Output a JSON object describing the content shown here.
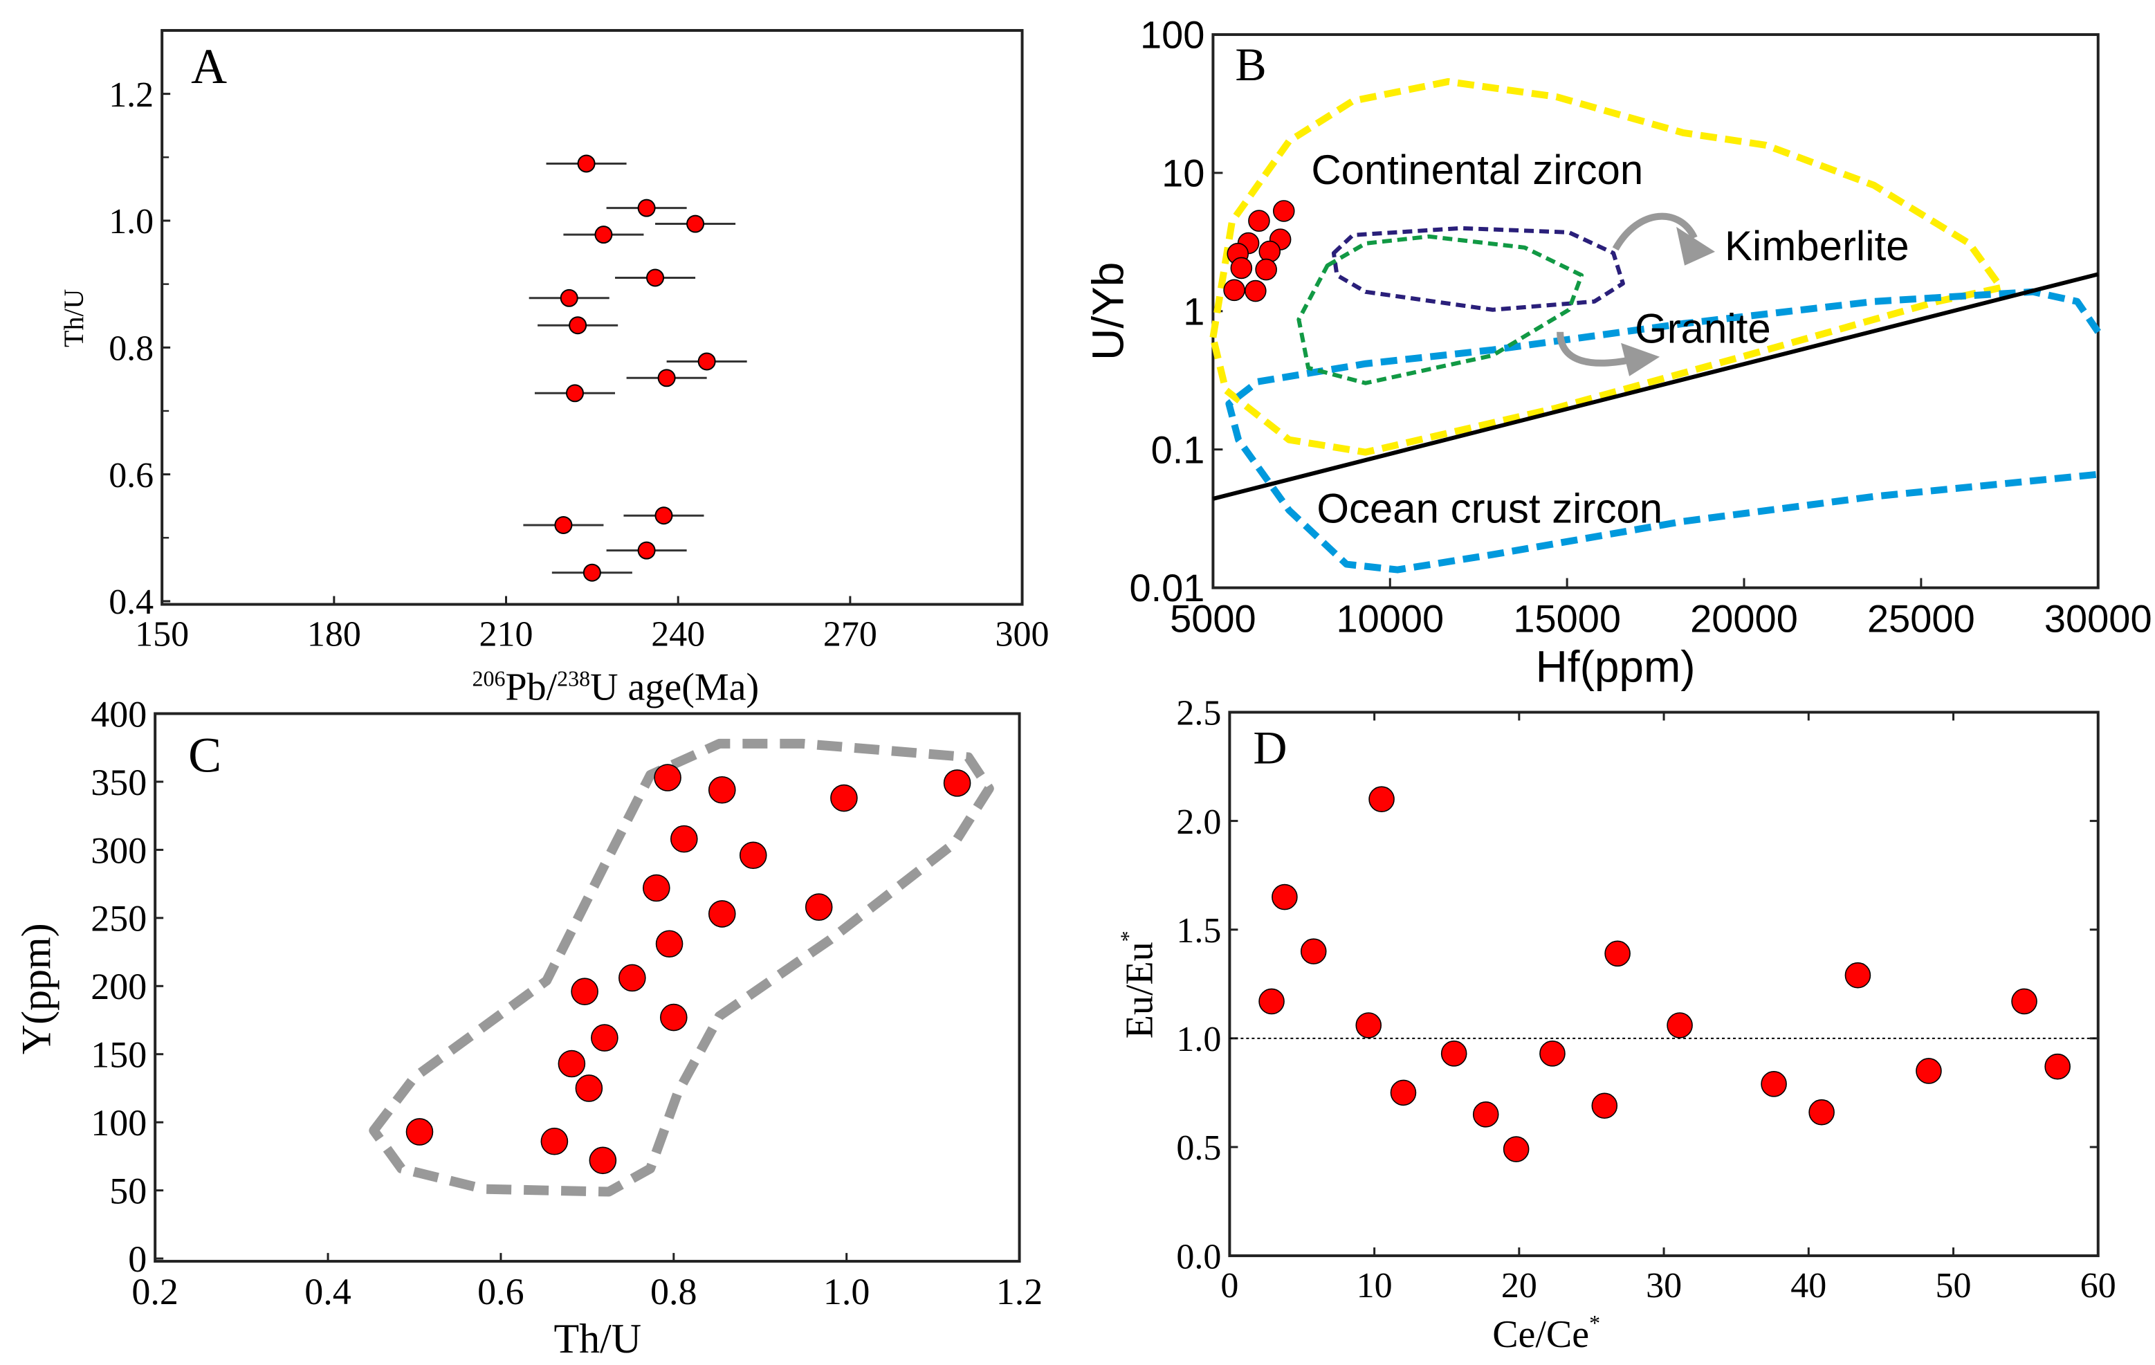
{
  "chart_data": [
    {
      "panel": "A",
      "type": "scatter",
      "xlabel": {
        "sup1": "206",
        "t1": "Pb/",
        "sup2": "238",
        "t2": "U age(Ma)"
      },
      "ylabel": "Th/U",
      "xlim": [
        150,
        300
      ],
      "ylim": [
        0.395,
        1.3
      ],
      "xticks": [
        "150",
        "180",
        "210",
        "240",
        "270",
        "300"
      ],
      "yticks": [
        "0.4",
        "0.6",
        "0.8",
        "1.0",
        "1.2"
      ],
      "error_bar_ma": 7,
      "points": [
        {
          "age": 224,
          "thu": 1.09
        },
        {
          "age": 234.5,
          "thu": 1.02
        },
        {
          "age": 243,
          "thu": 0.995
        },
        {
          "age": 227,
          "thu": 0.978
        },
        {
          "age": 236,
          "thu": 0.91
        },
        {
          "age": 221,
          "thu": 0.878
        },
        {
          "age": 222.5,
          "thu": 0.835
        },
        {
          "age": 245,
          "thu": 0.778
        },
        {
          "age": 238,
          "thu": 0.752
        },
        {
          "age": 222,
          "thu": 0.728
        },
        {
          "age": 237.5,
          "thu": 0.535
        },
        {
          "age": 220,
          "thu": 0.52
        },
        {
          "age": 234.5,
          "thu": 0.48
        },
        {
          "age": 225,
          "thu": 0.445
        }
      ],
      "colors": {
        "point": "#ff0000",
        "stroke": "#000000"
      }
    },
    {
      "panel": "B",
      "type": "scatter",
      "xlabel": "Hf(ppm)",
      "ylabel": "U/Yb",
      "yscale": "log",
      "xlim": [
        5000,
        30000
      ],
      "ylim": [
        0.01,
        100
      ],
      "xticks": [
        "5000",
        "10000",
        "15000",
        "20000",
        "25000",
        "30000"
      ],
      "yticks": [
        "0.01",
        "0.1",
        "1",
        "10",
        "100"
      ],
      "labels": {
        "continental": "Continental zircon",
        "kimberlite": "Kimberlite",
        "granite": "Granite",
        "ocean": "Ocean crust zircon"
      },
      "points": [
        {
          "hf": 7000,
          "uyb": 5.3
        },
        {
          "hf": 6300,
          "uyb": 4.5
        },
        {
          "hf": 6900,
          "uyb": 3.3
        },
        {
          "hf": 6000,
          "uyb": 3.1
        },
        {
          "hf": 6600,
          "uyb": 2.7
        },
        {
          "hf": 5700,
          "uyb": 2.6
        },
        {
          "hf": 5800,
          "uyb": 2.05
        },
        {
          "hf": 6500,
          "uyb": 2.0
        },
        {
          "hf": 5600,
          "uyb": 1.42
        },
        {
          "hf": 6200,
          "uyb": 1.4
        }
      ],
      "boundary_line": [
        [
          5000,
          0.044
        ],
        [
          30000,
          1.85
        ]
      ],
      "regions": [
        {
          "name": "continental-zircon",
          "color": "#ffee00",
          "closed": true,
          "log_points": [
            [
              5000,
              -0.19
            ],
            [
              5540,
              0.65
            ],
            [
              7150,
              1.23
            ],
            [
              8950,
              1.52
            ],
            [
              11640,
              1.66
            ],
            [
              14700,
              1.55
            ],
            [
              18280,
              1.29
            ],
            [
              20620,
              1.2
            ],
            [
              23670,
              0.91
            ],
            [
              26360,
              0.49
            ],
            [
              27260,
              0.17
            ],
            [
              25460,
              0.07
            ],
            [
              20080,
              -0.32
            ],
            [
              14700,
              -0.7
            ],
            [
              9310,
              -1.02
            ],
            [
              7150,
              -0.93
            ],
            [
              5360,
              -0.57
            ]
          ]
        },
        {
          "name": "ocean-crust-zircon",
          "color": "#0099dd",
          "closed": false,
          "log_points": [
            [
              30000,
              -0.15
            ],
            [
              29410,
              0.07
            ],
            [
              28160,
              0.14
            ],
            [
              23670,
              0.07
            ],
            [
              18280,
              -0.09
            ],
            [
              12900,
              -0.28
            ],
            [
              9310,
              -0.38
            ],
            [
              6260,
              -0.51
            ],
            [
              5450,
              -0.67
            ],
            [
              5720,
              -0.93
            ],
            [
              7150,
              -1.44
            ],
            [
              8770,
              -1.83
            ],
            [
              10210,
              -1.87
            ],
            [
              12900,
              -1.76
            ],
            [
              18280,
              -1.52
            ],
            [
              23670,
              -1.34
            ],
            [
              30000,
              -1.18
            ]
          ]
        },
        {
          "name": "kimberlite",
          "color": "#2a1f7a",
          "closed": true,
          "log_points": [
            [
              8410,
              0.42
            ],
            [
              8950,
              0.55
            ],
            [
              12000,
              0.6
            ],
            [
              15050,
              0.57
            ],
            [
              16310,
              0.42
            ],
            [
              16580,
              0.2
            ],
            [
              15770,
              0.07
            ],
            [
              12900,
              0.01
            ],
            [
              9310,
              0.14
            ],
            [
              8500,
              0.26
            ]
          ]
        },
        {
          "name": "granite",
          "color": "#119944",
          "closed": true,
          "log_points": [
            [
              8230,
              0.33
            ],
            [
              9310,
              0.49
            ],
            [
              11100,
              0.54
            ],
            [
              13800,
              0.46
            ],
            [
              15410,
              0.26
            ],
            [
              15050,
              0.01
            ],
            [
              12900,
              -0.32
            ],
            [
              9310,
              -0.52
            ],
            [
              7690,
              -0.41
            ],
            [
              7420,
              -0.06
            ]
          ]
        }
      ],
      "colors": {
        "point": "#ff0000",
        "arrow": "#999999",
        "line": "#000000"
      }
    },
    {
      "panel": "C",
      "type": "scatter",
      "xlabel": "Th/U",
      "ylabel": "Y(ppm)",
      "xlim": [
        0.2,
        1.2
      ],
      "ylim": [
        0,
        400
      ],
      "xticks": [
        "0.2",
        "0.4",
        "0.6",
        "0.8",
        "1.0",
        "1.2"
      ],
      "yticks": [
        "0",
        "50",
        "100",
        "150",
        "200",
        "250",
        "300",
        "350",
        "400"
      ],
      "points": [
        {
          "thu": 0.506,
          "y": 93
        },
        {
          "thu": 0.662,
          "y": 86
        },
        {
          "thu": 0.718,
          "y": 72
        },
        {
          "thu": 0.702,
          "y": 125
        },
        {
          "thu": 0.682,
          "y": 143
        },
        {
          "thu": 0.72,
          "y": 162
        },
        {
          "thu": 0.697,
          "y": 196
        },
        {
          "thu": 0.752,
          "y": 206
        },
        {
          "thu": 0.8,
          "y": 177
        },
        {
          "thu": 0.795,
          "y": 231
        },
        {
          "thu": 0.78,
          "y": 272
        },
        {
          "thu": 0.856,
          "y": 253
        },
        {
          "thu": 0.968,
          "y": 258
        },
        {
          "thu": 0.892,
          "y": 296
        },
        {
          "thu": 0.812,
          "y": 308
        },
        {
          "thu": 0.856,
          "y": 344
        },
        {
          "thu": 0.793,
          "y": 353
        },
        {
          "thu": 0.997,
          "y": 338
        },
        {
          "thu": 1.128,
          "y": 349
        }
      ],
      "envelope": [
        [
          0.453,
          94
        ],
        [
          0.5,
          133
        ],
        [
          0.653,
          204
        ],
        [
          0.725,
          295
        ],
        [
          0.773,
          355
        ],
        [
          0.853,
          378
        ],
        [
          0.949,
          378
        ],
        [
          1.141,
          368
        ],
        [
          1.165,
          345
        ],
        [
          1.125,
          305
        ],
        [
          0.981,
          234
        ],
        [
          0.853,
          178
        ],
        [
          0.805,
          122
        ],
        [
          0.773,
          66
        ],
        [
          0.725,
          49
        ],
        [
          0.581,
          51
        ],
        [
          0.485,
          66
        ]
      ],
      "colors": {
        "point": "#ff0000",
        "envelope": "#999999"
      }
    },
    {
      "panel": "D",
      "type": "scatter",
      "xlabel": {
        "t": "Ce/Ce",
        "sup": "*"
      },
      "ylabel": {
        "t": "Eu/Eu",
        "sup": "*"
      },
      "xlim": [
        0,
        60
      ],
      "ylim": [
        0,
        2.5
      ],
      "xticks": [
        "0",
        "10",
        "20",
        "30",
        "40",
        "50",
        "60"
      ],
      "yticks": [
        "0.0",
        "0.5",
        "1.0",
        "1.5",
        "2.0",
        "2.5"
      ],
      "reference_line": 1.0,
      "points": [
        {
          "ce": 2.9,
          "eu": 1.17
        },
        {
          "ce": 3.8,
          "eu": 1.65
        },
        {
          "ce": 5.8,
          "eu": 1.4
        },
        {
          "ce": 10.5,
          "eu": 2.1
        },
        {
          "ce": 9.6,
          "eu": 1.06
        },
        {
          "ce": 12.0,
          "eu": 0.75
        },
        {
          "ce": 15.5,
          "eu": 0.93
        },
        {
          "ce": 17.7,
          "eu": 0.65
        },
        {
          "ce": 19.8,
          "eu": 0.49
        },
        {
          "ce": 22.3,
          "eu": 0.93
        },
        {
          "ce": 25.9,
          "eu": 0.69
        },
        {
          "ce": 26.8,
          "eu": 1.39
        },
        {
          "ce": 31.1,
          "eu": 1.06
        },
        {
          "ce": 37.6,
          "eu": 0.79
        },
        {
          "ce": 40.9,
          "eu": 0.66
        },
        {
          "ce": 43.4,
          "eu": 1.29
        },
        {
          "ce": 48.3,
          "eu": 0.85
        },
        {
          "ce": 54.9,
          "eu": 1.17
        },
        {
          "ce": 57.2,
          "eu": 0.87
        }
      ],
      "colors": {
        "point": "#ff0000"
      }
    }
  ]
}
